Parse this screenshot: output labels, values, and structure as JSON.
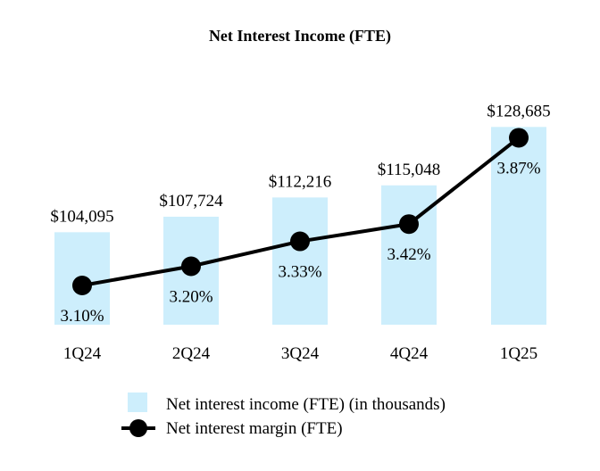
{
  "chart_data": {
    "type": "bar+line",
    "title": "Net Interest Income (FTE)",
    "categories": [
      "1Q24",
      "2Q24",
      "3Q24",
      "4Q24",
      "1Q25"
    ],
    "series": [
      {
        "name": "Net interest income (FTE) (in thousands)",
        "type": "bar",
        "values": [
          104095,
          107724,
          112216,
          115048,
          128685
        ],
        "labels": [
          "$104,095",
          "$107,724",
          "$112,216",
          "$115,048",
          "$128,685"
        ],
        "color": "#cdeefc"
      },
      {
        "name": "Net interest margin (FTE)",
        "type": "line",
        "values": [
          3.1,
          3.2,
          3.33,
          3.42,
          3.87
        ],
        "labels": [
          "3.10%",
          "3.20%",
          "3.33%",
          "3.42%",
          "3.87%"
        ],
        "color": "#000000"
      }
    ],
    "legend": [
      "Net interest income (FTE) (in thousands)",
      "Net interest margin (FTE)"
    ],
    "legend_position": "bottom"
  }
}
